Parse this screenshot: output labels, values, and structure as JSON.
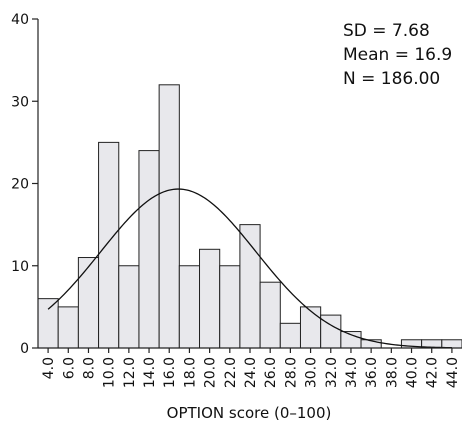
{
  "chart_data": {
    "type": "bar",
    "xlabel": "OPTION score (0–100)",
    "ylabel": "",
    "ylim": [
      0,
      40
    ],
    "yticks": [
      0,
      10,
      20,
      30,
      40
    ],
    "categories": [
      "4.0",
      "6.0",
      "8.0",
      "10.0",
      "12.0",
      "14.0",
      "16.0",
      "18.0",
      "20.0",
      "22.0",
      "24.0",
      "26.0",
      "28.0",
      "30.0",
      "32.0",
      "34.0",
      "36.0",
      "38.0",
      "40.0",
      "42.0",
      "44.0"
    ],
    "values": [
      6,
      5,
      11,
      25,
      10,
      24,
      32,
      10,
      12,
      10,
      15,
      8,
      3,
      5,
      4,
      2,
      1,
      0,
      1,
      1,
      1
    ],
    "normal_curve": {
      "mean": 16.9,
      "sd": 7.68,
      "n": 186,
      "bin_width": 2
    },
    "annotations": [
      "SD = 7.68",
      "Mean = 16.9",
      "N = 186.00"
    ]
  }
}
